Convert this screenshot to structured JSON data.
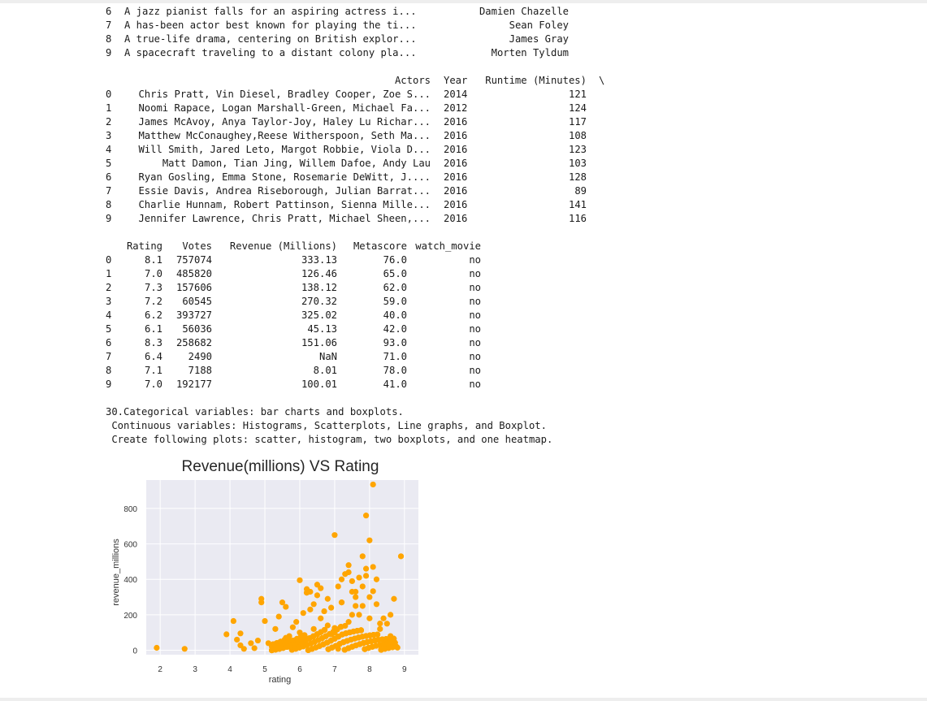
{
  "block1": {
    "rows": [
      {
        "idx": "6",
        "text": "A jazz pianist falls for an aspiring actress i...",
        "director": "Damien Chazelle"
      },
      {
        "idx": "7",
        "text": "A has-been actor best known for playing the ti...",
        "director": "Sean Foley"
      },
      {
        "idx": "8",
        "text": "A true-life drama, centering on British explor...",
        "director": "James Gray"
      },
      {
        "idx": "9",
        "text": "A spacecraft traveling to a distant colony pla...",
        "director": "Morten Tyldum"
      }
    ]
  },
  "block2": {
    "headers": {
      "actors": "Actors",
      "year": "Year",
      "runtime": "Runtime (Minutes)",
      "cont": "\\"
    },
    "rows": [
      {
        "idx": "0",
        "actors": "Chris Pratt, Vin Diesel, Bradley Cooper, Zoe S...",
        "year": "2014",
        "runtime": "121"
      },
      {
        "idx": "1",
        "actors": "Noomi Rapace, Logan Marshall-Green, Michael Fa...",
        "year": "2012",
        "runtime": "124"
      },
      {
        "idx": "2",
        "actors": "James McAvoy, Anya Taylor-Joy, Haley Lu Richar...",
        "year": "2016",
        "runtime": "117"
      },
      {
        "idx": "3",
        "actors": "Matthew McConaughey,Reese Witherspoon, Seth Ma...",
        "year": "2016",
        "runtime": "108"
      },
      {
        "idx": "4",
        "actors": "Will Smith, Jared Leto, Margot Robbie, Viola D...",
        "year": "2016",
        "runtime": "123"
      },
      {
        "idx": "5",
        "actors": "Matt Damon, Tian Jing, Willem Dafoe, Andy Lau",
        "year": "2016",
        "runtime": "103"
      },
      {
        "idx": "6",
        "actors": "Ryan Gosling, Emma Stone, Rosemarie DeWitt, J....",
        "year": "2016",
        "runtime": "128"
      },
      {
        "idx": "7",
        "actors": "Essie Davis, Andrea Riseborough, Julian Barrat...",
        "year": "2016",
        "runtime": "89"
      },
      {
        "idx": "8",
        "actors": "Charlie Hunnam, Robert Pattinson, Sienna Mille...",
        "year": "2016",
        "runtime": "141"
      },
      {
        "idx": "9",
        "actors": "Jennifer Lawrence, Chris Pratt, Michael Sheen,...",
        "year": "2016",
        "runtime": "116"
      }
    ]
  },
  "block3": {
    "headers": {
      "rating": "Rating",
      "votes": "Votes",
      "revenue": "Revenue (Millions)",
      "metascore": "Metascore",
      "watch": "watch_movie"
    },
    "rows": [
      {
        "idx": "0",
        "rating": "8.1",
        "votes": "757074",
        "revenue": "333.13",
        "metascore": "76.0",
        "watch": "no"
      },
      {
        "idx": "1",
        "rating": "7.0",
        "votes": "485820",
        "revenue": "126.46",
        "metascore": "65.0",
        "watch": "no"
      },
      {
        "idx": "2",
        "rating": "7.3",
        "votes": "157606",
        "revenue": "138.12",
        "metascore": "62.0",
        "watch": "no"
      },
      {
        "idx": "3",
        "rating": "7.2",
        "votes": "60545",
        "revenue": "270.32",
        "metascore": "59.0",
        "watch": "no"
      },
      {
        "idx": "4",
        "rating": "6.2",
        "votes": "393727",
        "revenue": "325.02",
        "metascore": "40.0",
        "watch": "no"
      },
      {
        "idx": "5",
        "rating": "6.1",
        "votes": "56036",
        "revenue": "45.13",
        "metascore": "42.0",
        "watch": "no"
      },
      {
        "idx": "6",
        "rating": "8.3",
        "votes": "258682",
        "revenue": "151.06",
        "metascore": "93.0",
        "watch": "no"
      },
      {
        "idx": "7",
        "rating": "6.4",
        "votes": "2490",
        "revenue": "NaN",
        "metascore": "71.0",
        "watch": "no"
      },
      {
        "idx": "8",
        "rating": "7.1",
        "votes": "7188",
        "revenue": "8.01",
        "metascore": "78.0",
        "watch": "no"
      },
      {
        "idx": "9",
        "rating": "7.0",
        "votes": "192177",
        "revenue": "100.01",
        "metascore": "41.0",
        "watch": "no"
      }
    ]
  },
  "notes": {
    "line1": "30.Categorical variables: bar charts and boxplots.",
    "line2": " Continuous variables: Histograms, Scatterplots, Line graphs, and Boxplot.",
    "line3": " Create following plots: scatter, histogram, two boxplots, and one heatmap."
  },
  "chart_data": {
    "type": "scatter",
    "title": "Revenue(millions) VS Rating",
    "xlabel": "rating",
    "ylabel": "revenue_millions",
    "xlim": [
      1.6,
      9.4
    ],
    "ylim": [
      -25,
      960
    ],
    "xticks": [
      "2",
      "3",
      "4",
      "5",
      "6",
      "7",
      "8",
      "9"
    ],
    "yticks": [
      "0",
      "200",
      "400",
      "600",
      "800"
    ],
    "grid": true,
    "color": "#FFA500",
    "background": "#EAEAF2",
    "points": [
      [
        1.9,
        14
      ],
      [
        2.7,
        8
      ],
      [
        3.9,
        90
      ],
      [
        4.1,
        165
      ],
      [
        4.2,
        60
      ],
      [
        4.3,
        95
      ],
      [
        4.3,
        28
      ],
      [
        4.4,
        8
      ],
      [
        4.6,
        40
      ],
      [
        4.7,
        12
      ],
      [
        4.8,
        55
      ],
      [
        4.9,
        290
      ],
      [
        4.9,
        270
      ],
      [
        5.0,
        165
      ],
      [
        5.1,
        40
      ],
      [
        5.2,
        20
      ],
      [
        5.3,
        120
      ],
      [
        5.4,
        190
      ],
      [
        5.5,
        270
      ],
      [
        5.6,
        245
      ],
      [
        5.7,
        80
      ],
      [
        5.8,
        130
      ],
      [
        5.9,
        160
      ],
      [
        6.0,
        395
      ],
      [
        6.1,
        210
      ],
      [
        6.2,
        345
      ],
      [
        6.2,
        325
      ],
      [
        6.3,
        330
      ],
      [
        6.4,
        260
      ],
      [
        6.5,
        370
      ],
      [
        6.5,
        310
      ],
      [
        6.6,
        350
      ],
      [
        6.7,
        220
      ],
      [
        6.8,
        290
      ],
      [
        6.9,
        240
      ],
      [
        7.0,
        650
      ],
      [
        7.1,
        360
      ],
      [
        7.2,
        400
      ],
      [
        7.2,
        270
      ],
      [
        7.3,
        430
      ],
      [
        7.4,
        480
      ],
      [
        7.4,
        440
      ],
      [
        7.5,
        390
      ],
      [
        7.5,
        330
      ],
      [
        7.6,
        300
      ],
      [
        7.7,
        410
      ],
      [
        7.8,
        530
      ],
      [
        7.8,
        360
      ],
      [
        7.9,
        460
      ],
      [
        7.9,
        420
      ],
      [
        8.0,
        620
      ],
      [
        8.0,
        300
      ],
      [
        8.1,
        333
      ],
      [
        8.1,
        470
      ],
      [
        8.2,
        260
      ],
      [
        8.2,
        400
      ],
      [
        8.3,
        151
      ],
      [
        8.4,
        180
      ],
      [
        8.5,
        150
      ],
      [
        8.7,
        290
      ],
      [
        8.9,
        530
      ],
      [
        8.6,
        80
      ],
      [
        8.5,
        20
      ],
      [
        8.8,
        15
      ],
      [
        7.9,
        760
      ],
      [
        8.1,
        935
      ],
      [
        7.5,
        200
      ],
      [
        7.6,
        250
      ],
      [
        6.3,
        230
      ],
      [
        6.6,
        180
      ],
      [
        5.9,
        60
      ],
      [
        6.0,
        100
      ],
      [
        7.0,
        126
      ],
      [
        7.3,
        138
      ],
      [
        7.2,
        270
      ],
      [
        6.2,
        325
      ],
      [
        6.1,
        45
      ],
      [
        7.1,
        8
      ],
      [
        7.0,
        100
      ],
      [
        6.8,
        140
      ],
      [
        6.4,
        120
      ],
      [
        6.9,
        90
      ],
      [
        7.7,
        200
      ],
      [
        8.0,
        180
      ],
      [
        8.3,
        120
      ],
      [
        7.8,
        250
      ],
      [
        6.5,
        90
      ],
      [
        5.6,
        70
      ],
      [
        5.4,
        30
      ],
      [
        8.6,
        200
      ],
      [
        7.4,
        160
      ],
      [
        7.6,
        330
      ]
    ]
  }
}
